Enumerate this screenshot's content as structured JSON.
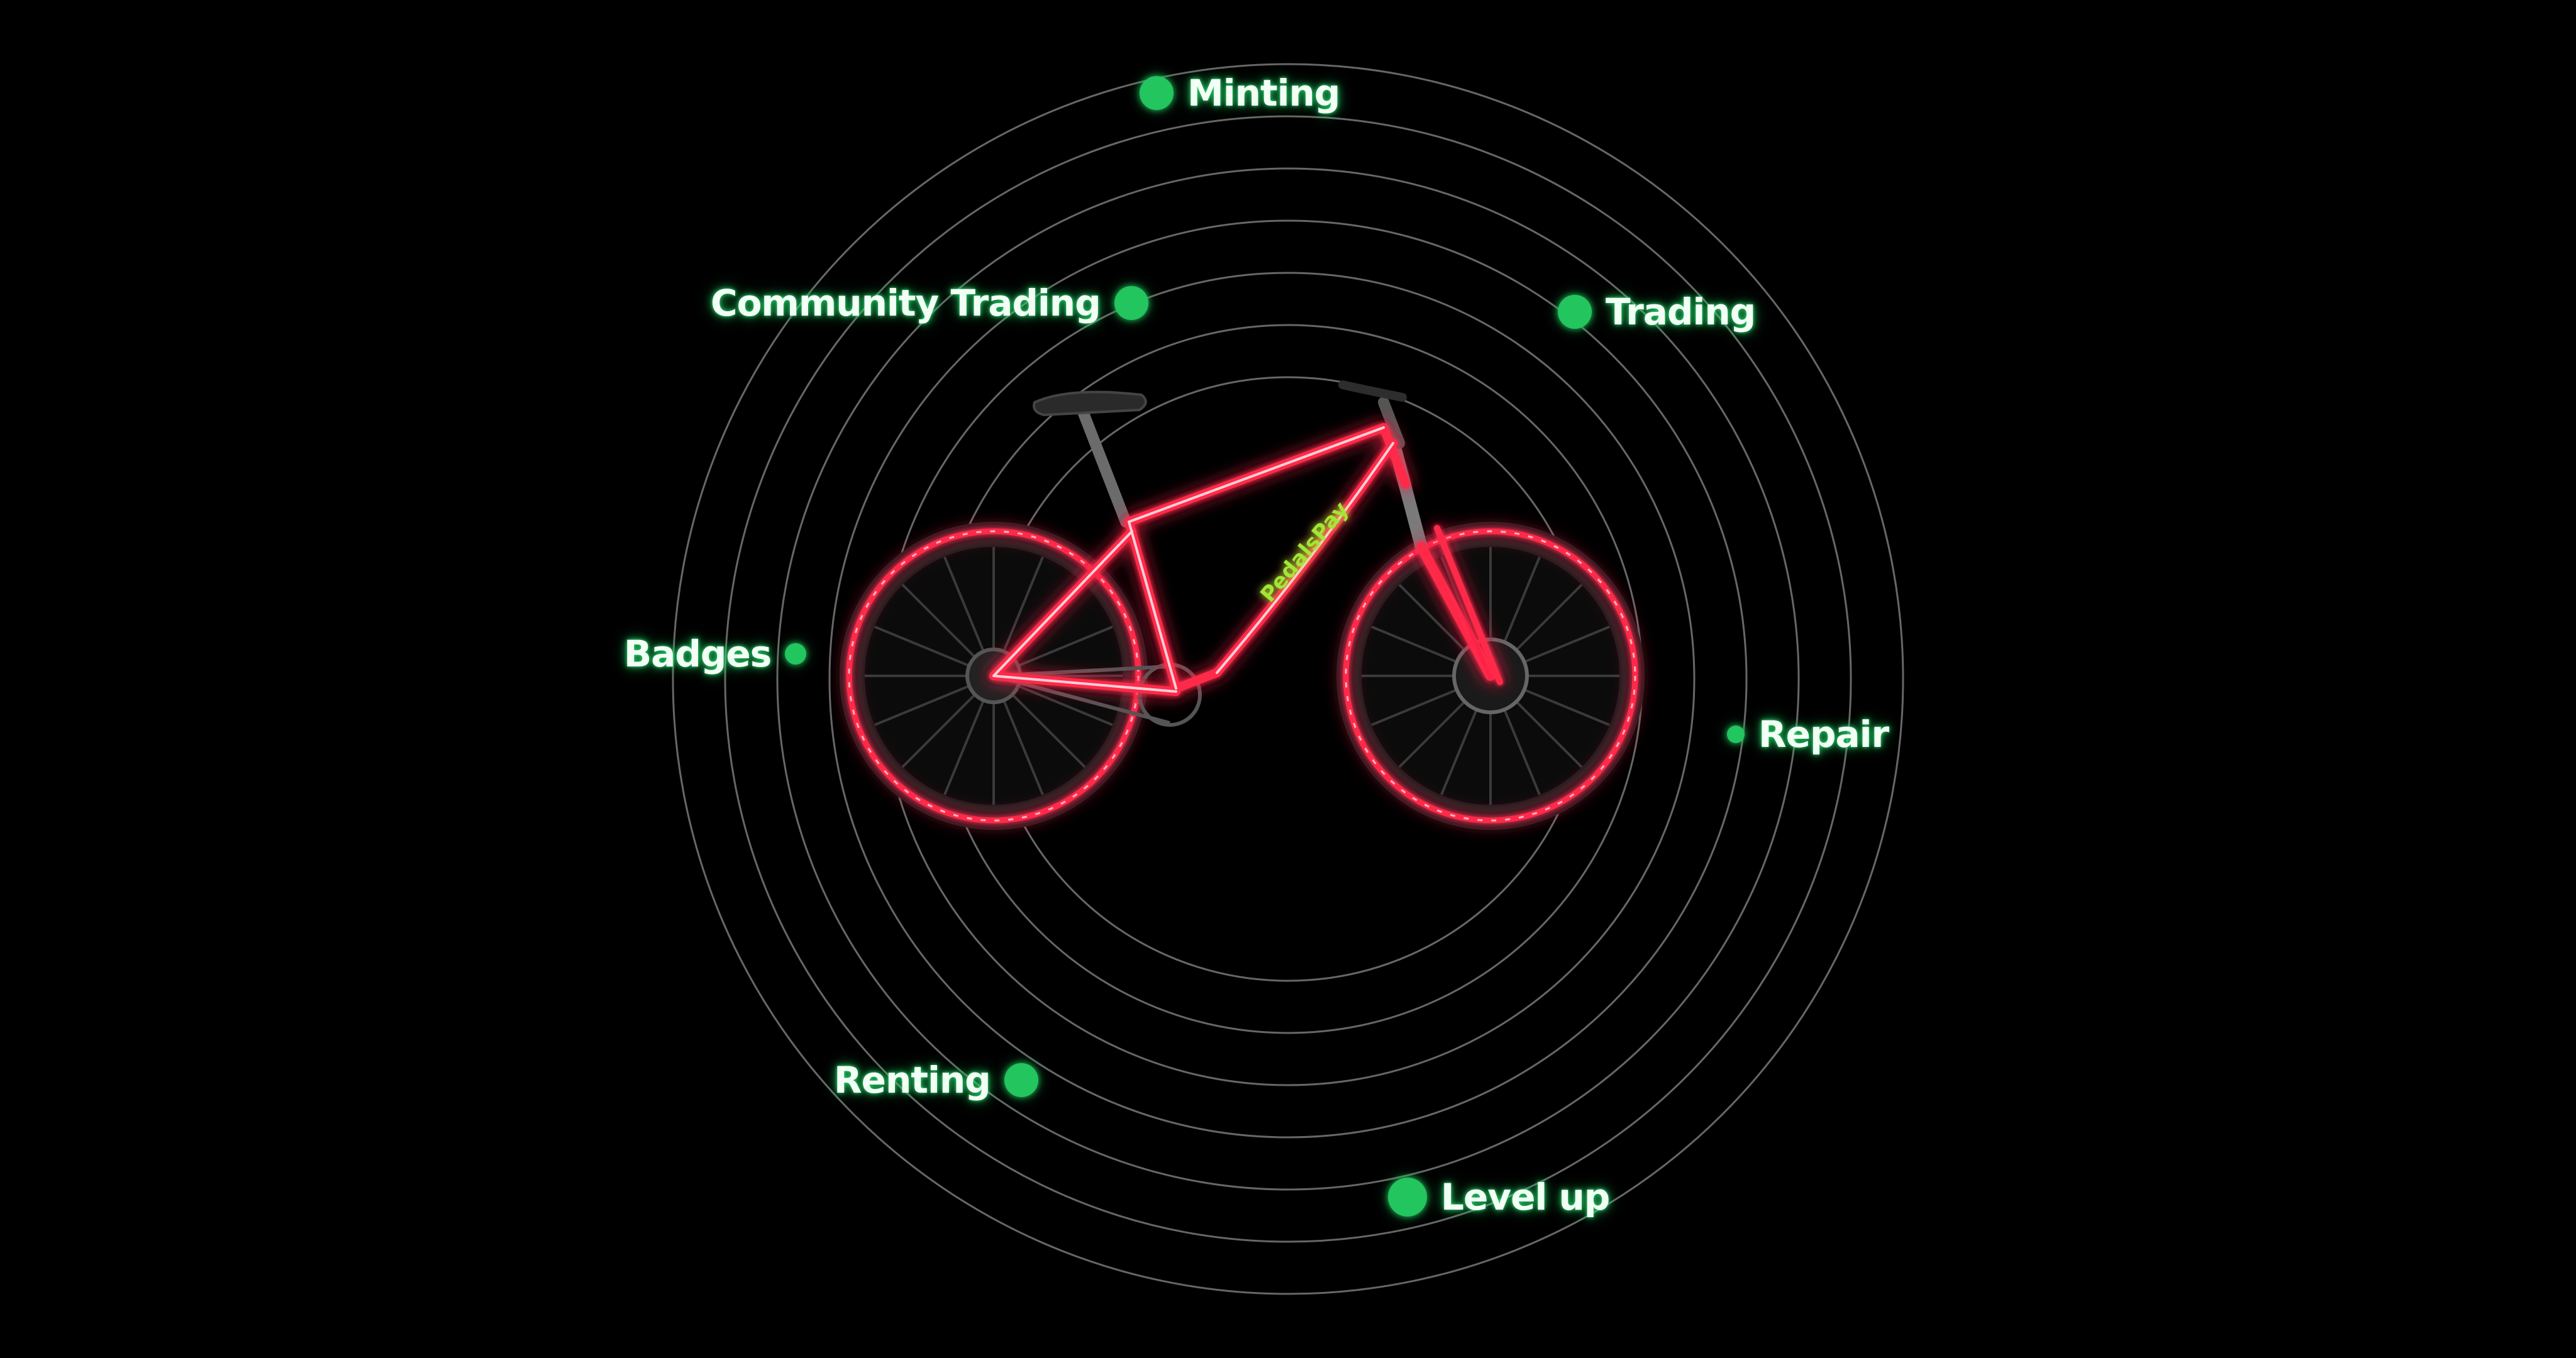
{
  "diagram": {
    "center_brand": "PedalsPay",
    "nodes": [
      {
        "id": "minting",
        "label": "Minting"
      },
      {
        "id": "community-trading",
        "label": "Community Trading"
      },
      {
        "id": "trading",
        "label": "Trading"
      },
      {
        "id": "badges",
        "label": "Badges"
      },
      {
        "id": "repair",
        "label": "Repair"
      },
      {
        "id": "renting",
        "label": "Renting"
      },
      {
        "id": "level-up",
        "label": "Level up"
      }
    ]
  },
  "colors": {
    "background": "#000000",
    "ring": "#8a8a8a",
    "node_dot": "#22c55e",
    "neon": "#ff2a4a",
    "brand_text": "#a3e635"
  },
  "icons": {
    "center": "bicycle-icon",
    "node": "dot-icon"
  }
}
